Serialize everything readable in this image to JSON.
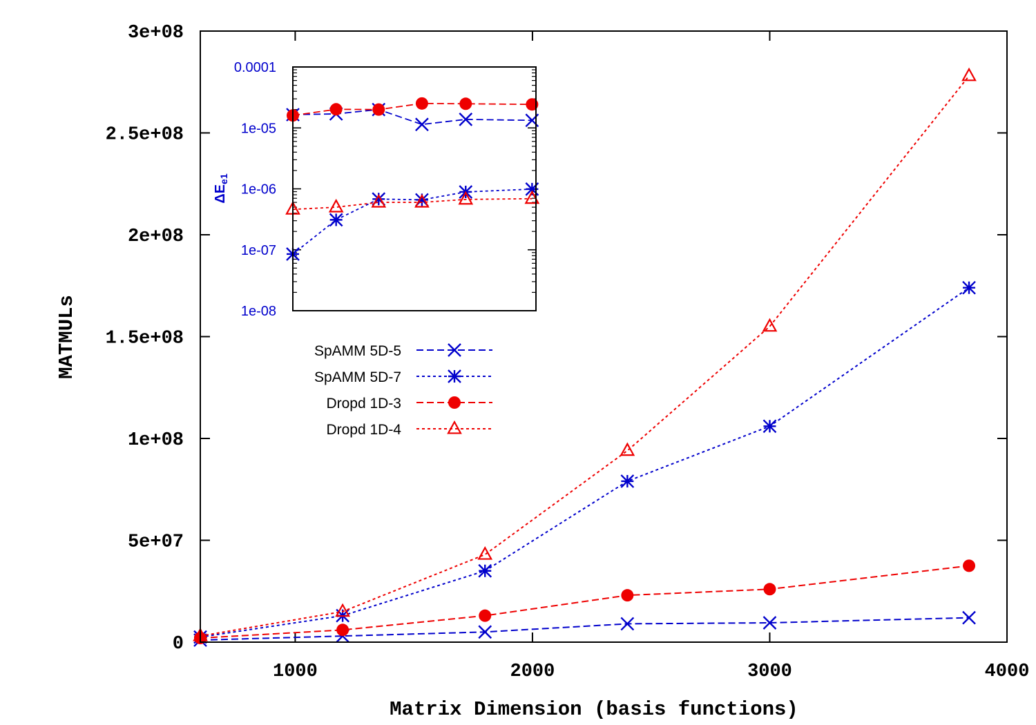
{
  "colors": {
    "blue": "#0000cc",
    "red": "#ee0000",
    "axis": "#000000"
  },
  "chart_data": [
    {
      "type": "line",
      "name": "main",
      "xlabel": "Matrix Dimension (basis functions)",
      "ylabel": "MATMULs",
      "xlim": [
        600,
        4000
      ],
      "ylim": [
        0,
        300000000
      ],
      "xticks": [
        1000,
        2000,
        3000,
        4000
      ],
      "xtick_labels": [
        "1000",
        "2000",
        "3000",
        "4000"
      ],
      "yticks": [
        0,
        50000000,
        100000000,
        150000000,
        200000000,
        250000000,
        300000000
      ],
      "ytick_labels": [
        "0",
        "5e+07",
        "1e+08",
        "1.5e+08",
        "2e+08",
        "2.5e+08",
        "3e+08"
      ],
      "series": [
        {
          "name": "SpAMM 5D-5",
          "color": "#0000cc",
          "marker": "x",
          "dash": "10,5",
          "x": [
            600,
            1200,
            1800,
            2400,
            3000,
            3840
          ],
          "y": [
            1000000,
            3000000,
            5000000,
            9000000,
            9500000,
            12000000
          ]
        },
        {
          "name": "SpAMM 5D-7",
          "color": "#0000cc",
          "marker": "asterisk",
          "dash": "4,4",
          "x": [
            600,
            1200,
            1800,
            2400,
            3000,
            3840
          ],
          "y": [
            2500000,
            13000000,
            35000000,
            79000000,
            106000000,
            174000000
          ]
        },
        {
          "name": "Dropd 1D-3",
          "color": "#ee0000",
          "marker": "circle",
          "dash": "10,5",
          "x": [
            600,
            1200,
            1800,
            2400,
            3000,
            3840
          ],
          "y": [
            2000000,
            6000000,
            13000000,
            23000000,
            26000000,
            37500000
          ]
        },
        {
          "name": "Dropd 1D-4",
          "color": "#ee0000",
          "marker": "triangle",
          "dash": "4,4",
          "x": [
            600,
            1200,
            1800,
            2400,
            3000,
            3840
          ],
          "y": [
            3000000,
            15000000,
            43000000,
            94000000,
            155000000,
            278000000
          ]
        }
      ]
    },
    {
      "type": "line",
      "name": "inset",
      "yscale": "log",
      "ylabel": "ΔE",
      "ylabel_sub": "e1",
      "xlim": [
        600,
        1600
      ],
      "ylim": [
        1e-08,
        0.0001
      ],
      "ytick_labels": [
        "0.0001",
        "1e-05",
        "1e-06",
        "1e-07",
        "1e-08"
      ],
      "series": [
        {
          "name": "SpAMM 5D-5",
          "color": "#0000cc",
          "marker": "x",
          "dash": "10,5",
          "x": [
            600,
            778,
            953,
            1131,
            1311,
            1584
          ],
          "y": [
            1.65e-05,
            1.7e-05,
            2e-05,
            1.14e-05,
            1.38e-05,
            1.33e-05
          ]
        },
        {
          "name": "SpAMM 5D-7",
          "color": "#0000cc",
          "marker": "asterisk",
          "dash": "4,4",
          "x": [
            600,
            778,
            953,
            1131,
            1311,
            1584
          ],
          "y": [
            8.5e-08,
            3.1e-07,
            6.8e-07,
            6.6e-07,
            8.9e-07,
            9.9e-07
          ]
        },
        {
          "name": "Dropd 1D-3",
          "color": "#ee0000",
          "marker": "circle",
          "dash": "10,5",
          "x": [
            600,
            778,
            953,
            1131,
            1311,
            1584
          ],
          "y": [
            1.6e-05,
            2.02e-05,
            2e-05,
            2.52e-05,
            2.49e-05,
            2.43e-05
          ]
        },
        {
          "name": "Dropd 1D-4",
          "color": "#ee0000",
          "marker": "triangle",
          "dash": "4,4",
          "x": [
            600,
            778,
            953,
            1131,
            1311,
            1584
          ],
          "y": [
            4.6e-07,
            5e-07,
            6e-07,
            6e-07,
            6.7e-07,
            6.9e-07
          ]
        }
      ]
    }
  ],
  "legend": {
    "placement": "center-left",
    "items": [
      {
        "label": "SpAMM 5D-5"
      },
      {
        "label": "SpAMM 5D-7"
      },
      {
        "label": "Dropd 1D-3"
      },
      {
        "label": "Dropd 1D-4"
      }
    ]
  }
}
